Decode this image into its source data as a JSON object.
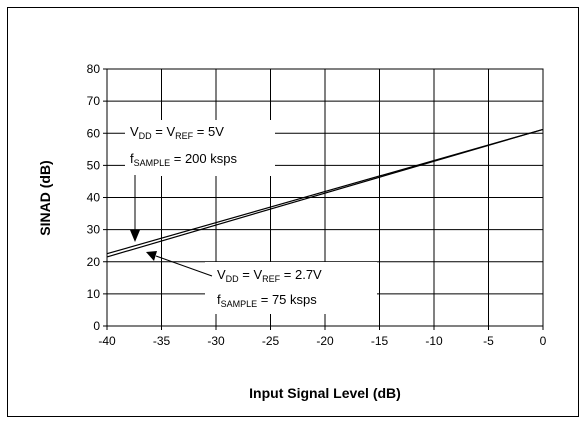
{
  "chart_data": {
    "type": "line",
    "xlabel": "Input Signal Level (dB)",
    "ylabel": "SINAD (dB)",
    "xlim": [
      -40,
      0
    ],
    "ylim": [
      0,
      80
    ],
    "x_ticks": [
      -40,
      -35,
      -30,
      -25,
      -20,
      -15,
      -10,
      -5,
      0
    ],
    "y_ticks": [
      0,
      10,
      20,
      30,
      40,
      50,
      60,
      70,
      80
    ],
    "grid": true,
    "series": [
      {
        "x": [
          -40,
          0
        ],
        "y": [
          21.5,
          61.2
        ]
      },
      {
        "x": [
          -40,
          0
        ],
        "y": [
          22.5,
          61.2
        ]
      }
    ],
    "annotations": [
      {
        "line1": {
          "a": "V",
          "a_sub": "DD",
          "b": " = V",
          "b_sub": "REF",
          "c": " = 5V"
        },
        "line2": {
          "a": "f",
          "a_sub": "SAMPLE",
          "b": " = 200 ksps"
        }
      },
      {
        "line1": {
          "a": "V",
          "a_sub": "DD",
          "b": " = V",
          "b_sub": "REF",
          "c": " = 2.7V"
        },
        "line2": {
          "a": "f",
          "a_sub": "SAMPLE",
          "b": " = 75 ksps"
        }
      }
    ]
  }
}
